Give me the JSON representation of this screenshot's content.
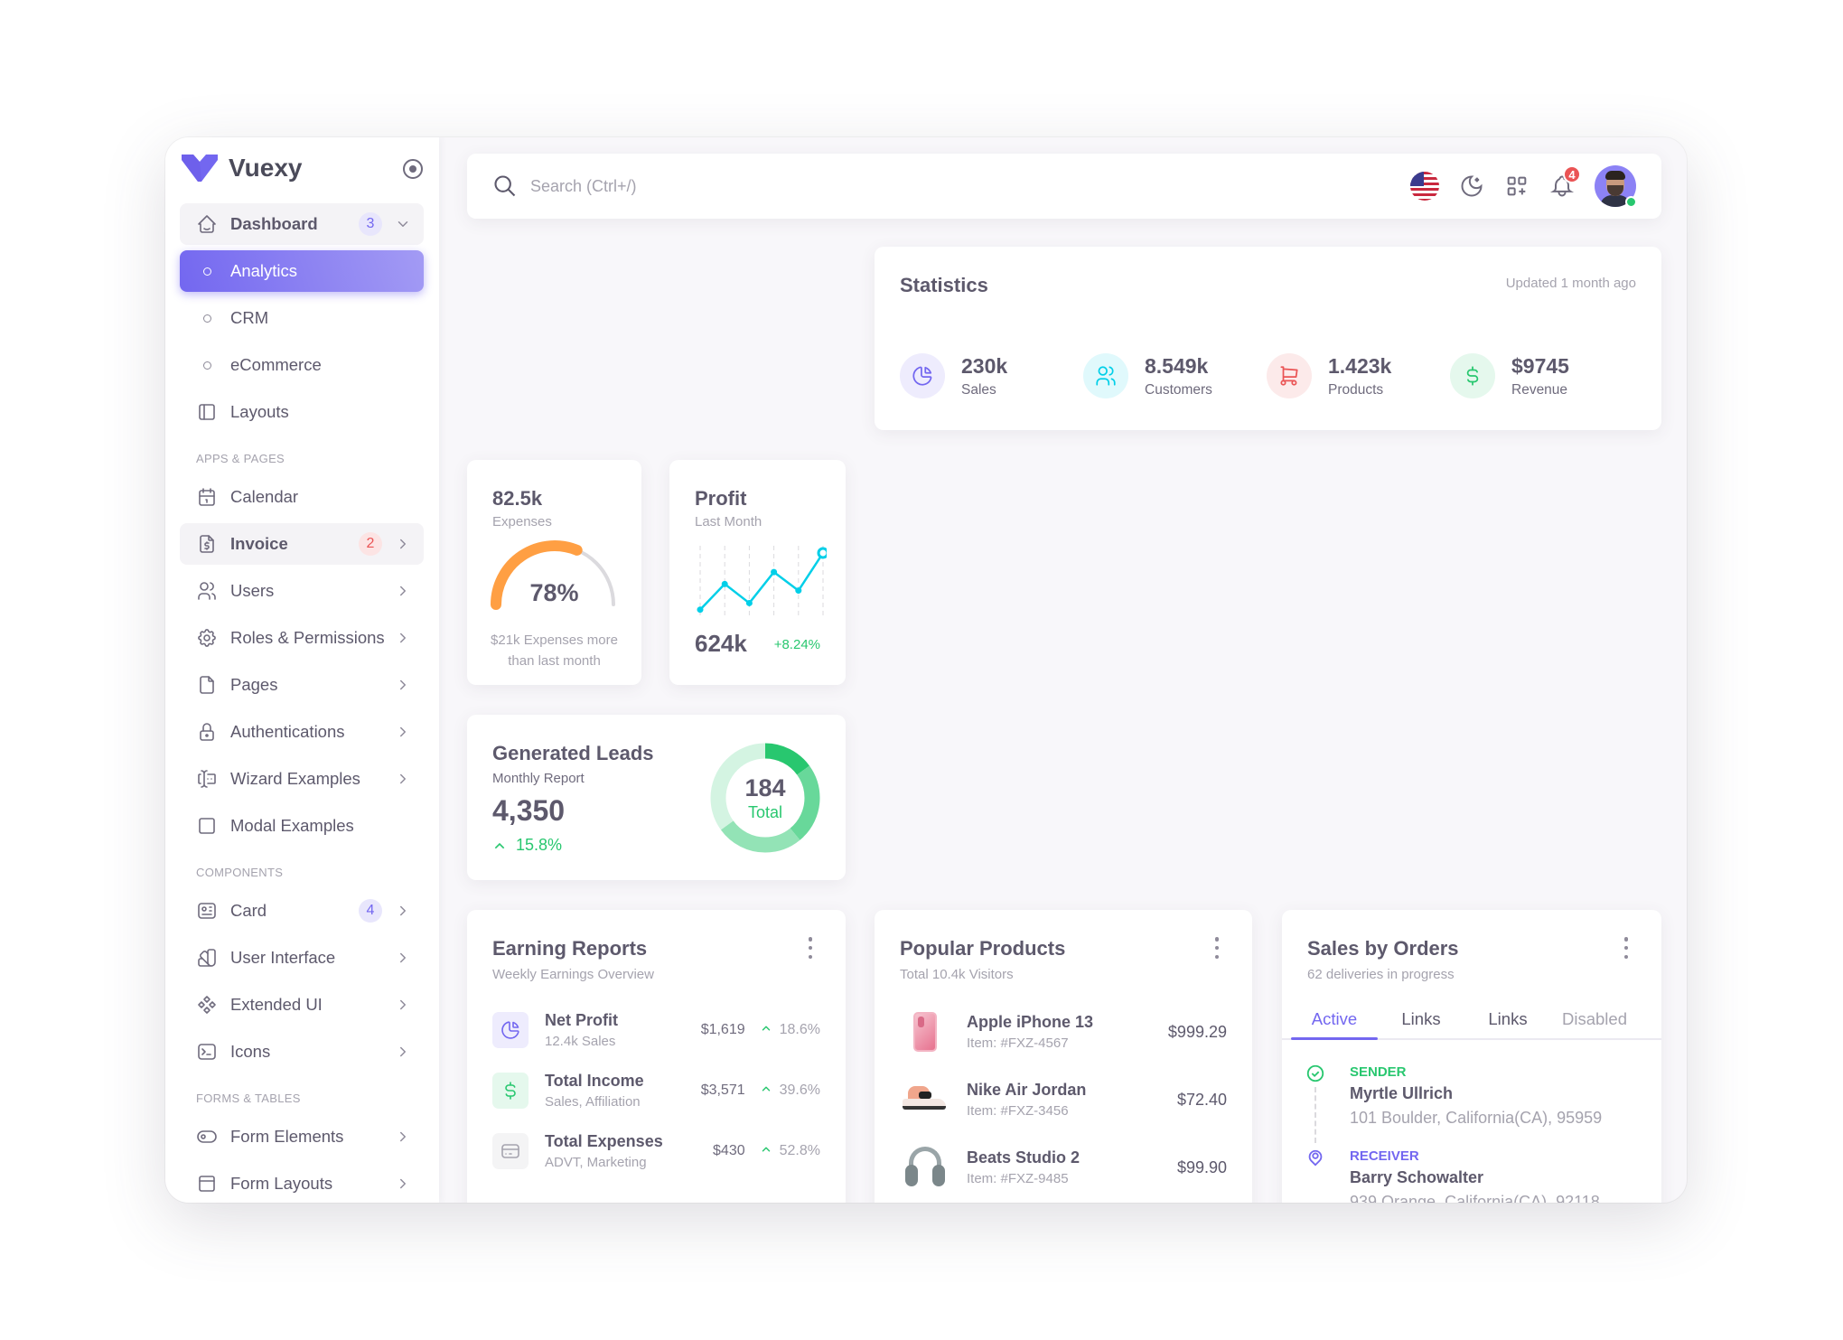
{
  "brand": {
    "name": "Vuexy",
    "color": "#7367f0"
  },
  "sidebar": {
    "items": [
      {
        "type": "item",
        "label": "Dashboard",
        "icon": "home-icon",
        "badge": "3",
        "badge_color": "#7367f0",
        "badge_bg": "#e8e6fc",
        "chevron": "down",
        "state": "open"
      },
      {
        "type": "sub",
        "label": "Analytics",
        "state": "active"
      },
      {
        "type": "sub",
        "label": "CRM"
      },
      {
        "type": "sub",
        "label": "eCommerce"
      },
      {
        "type": "item",
        "label": "Layouts",
        "icon": "layout-icon"
      },
      {
        "type": "header",
        "label": "APPS & PAGES"
      },
      {
        "type": "item",
        "label": "Calendar",
        "icon": "calendar-icon"
      },
      {
        "type": "item",
        "label": "Invoice",
        "icon": "file-dollar-icon",
        "badge": "2",
        "badge_color": "#ea5455",
        "badge_bg": "#fce4e4",
        "chevron": "right",
        "state": "open"
      },
      {
        "type": "item",
        "label": "Users",
        "icon": "users-icon",
        "chevron": "right"
      },
      {
        "type": "item",
        "label": "Roles & Permissions",
        "icon": "settings-icon",
        "chevron": "right"
      },
      {
        "type": "item",
        "label": "Pages",
        "icon": "file-icon",
        "chevron": "right"
      },
      {
        "type": "item",
        "label": "Authentications",
        "icon": "lock-icon",
        "chevron": "right"
      },
      {
        "type": "item",
        "label": "Wizard Examples",
        "icon": "forms-icon",
        "chevron": "right"
      },
      {
        "type": "item",
        "label": "Modal Examples",
        "icon": "square-icon"
      },
      {
        "type": "header",
        "label": "COMPONENTS"
      },
      {
        "type": "item",
        "label": "Card",
        "icon": "id-card-icon",
        "badge": "4",
        "badge_color": "#7367f0",
        "badge_bg": "#e8e6fc",
        "chevron": "right"
      },
      {
        "type": "item",
        "label": "User Interface",
        "icon": "color-swatch-icon",
        "chevron": "right"
      },
      {
        "type": "item",
        "label": "Extended UI",
        "icon": "components-icon",
        "chevron": "right"
      },
      {
        "type": "item",
        "label": "Icons",
        "icon": "terminal-icon",
        "chevron": "right"
      },
      {
        "type": "header",
        "label": "FORMS & TABLES"
      },
      {
        "type": "item",
        "label": "Form Elements",
        "icon": "toggle-icon",
        "chevron": "right"
      },
      {
        "type": "item",
        "label": "Form Layouts",
        "icon": "layout-navbar-icon",
        "chevron": "right"
      }
    ]
  },
  "navbar": {
    "search_placeholder": "Search (Ctrl+/)",
    "notifications": "4"
  },
  "statistics": {
    "title": "Statistics",
    "updated": "Updated 1 month ago",
    "items": [
      {
        "value": "230k",
        "label": "Sales",
        "icon": "chart-pie-icon",
        "color": "#7367f0",
        "bg": "#eeecfd"
      },
      {
        "value": "8.549k",
        "label": "Customers",
        "icon": "users-icon",
        "color": "#00cfe8",
        "bg": "#e0f9fc"
      },
      {
        "value": "1.423k",
        "label": "Products",
        "icon": "shopping-cart-icon",
        "color": "#ea5455",
        "bg": "#fceaea"
      },
      {
        "value": "$9745",
        "label": "Revenue",
        "icon": "currency-dollar-icon",
        "color": "#28c76f",
        "bg": "#e5f8ed"
      }
    ]
  },
  "expenses": {
    "value": "82.5k",
    "label": "Expenses",
    "percent": 78,
    "percent_label": "78%",
    "note": "$21k Expenses more than last month",
    "color": "#ff9f43"
  },
  "profit": {
    "title": "Profit",
    "subtitle": "Last Month",
    "value": "624k",
    "change": "+8.24%",
    "trend": [
      0.05,
      0.48,
      0.16,
      0.68,
      0.37,
      1.0
    ],
    "color": "#00cfe8"
  },
  "leads": {
    "title": "Generated Leads",
    "subtitle": "Monthly Report",
    "value": "4,350",
    "change": "15.8%",
    "total": "184",
    "total_label": "Total",
    "segments": [
      {
        "fraction": 0.15,
        "color": "#28c76f"
      },
      {
        "fraction": 0.24,
        "color": "#68d89a"
      },
      {
        "fraction": 0.26,
        "color": "#93e3b6"
      },
      {
        "fraction": 0.35,
        "color": "#d4f4e2"
      }
    ]
  },
  "earning": {
    "title": "Earning Reports",
    "subtitle": "Weekly Earnings Overview",
    "rows": [
      {
        "name": "Net Profit",
        "sub": "12.4k Sales",
        "amount": "$1,619",
        "change": "18.6%",
        "icon": "chart-pie-icon",
        "color": "#7367f0",
        "bg": "#eeecfd"
      },
      {
        "name": "Total Income",
        "sub": "Sales, Affiliation",
        "amount": "$3,571",
        "change": "39.6%",
        "icon": "currency-dollar-icon",
        "color": "#28c76f",
        "bg": "#e5f8ed"
      },
      {
        "name": "Total Expenses",
        "sub": "ADVT, Marketing",
        "amount": "$430",
        "change": "52.8%",
        "icon": "credit-card-icon",
        "color": "#a5a3ae",
        "bg": "#f4f4f5"
      }
    ]
  },
  "popular": {
    "title": "Popular Products",
    "subtitle": "Total 10.4k Visitors",
    "rows": [
      {
        "name": "Apple iPhone 13",
        "item": "Item: #FXZ-4567",
        "price": "$999.29",
        "image": "iphone"
      },
      {
        "name": "Nike Air Jordan",
        "item": "Item: #FXZ-3456",
        "price": "$72.40",
        "image": "shoe"
      },
      {
        "name": "Beats Studio 2",
        "item": "Item: #FXZ-9485",
        "price": "$99.90",
        "image": "headphones"
      }
    ]
  },
  "orders": {
    "title": "Sales by Orders",
    "subtitle": "62 deliveries in progress",
    "tabs": [
      {
        "label": "Active",
        "state": "active"
      },
      {
        "label": "Links"
      },
      {
        "label": "Links"
      },
      {
        "label": "Disabled",
        "state": "disabled"
      }
    ],
    "sender": {
      "label": "SENDER",
      "name": "Myrtle Ullrich",
      "address": "101 Boulder, California(CA), 95959",
      "color": "#28c76f"
    },
    "receiver": {
      "label": "RECEIVER",
      "name": "Barry Schowalter",
      "address": "939 Orange, California(CA), 92118",
      "color": "#7367f0"
    }
  }
}
